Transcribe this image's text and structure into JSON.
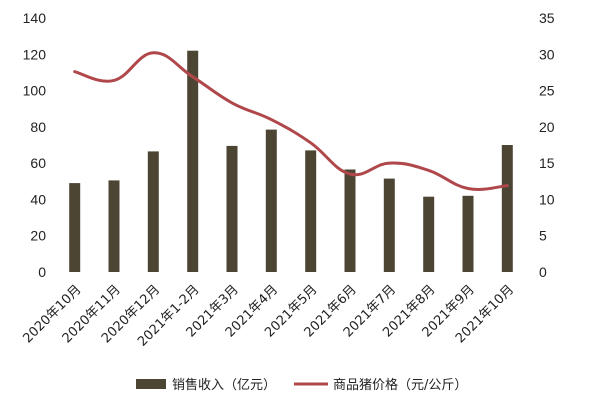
{
  "chart_data": {
    "type": "bar+line",
    "categories": [
      "2020年10月",
      "2020年11月",
      "2020年12月",
      "2021年1-2月",
      "2021年3月",
      "2021年4月",
      "2021年5月",
      "2021年6月",
      "2021年7月",
      "2021年8月",
      "2021年9月",
      "2021年10月"
    ],
    "series": [
      {
        "name": "销售收入（亿元）",
        "type": "bar",
        "axis": "left",
        "color": "#4d4533",
        "values": [
          49,
          50.5,
          66.5,
          122,
          69.5,
          78.5,
          67,
          56.5,
          51.5,
          41.5,
          42,
          70
        ]
      },
      {
        "name": "商品猪价格（元/公斤）",
        "type": "line",
        "axis": "right",
        "color": "#b0484b",
        "values": [
          27.6,
          26.4,
          30.2,
          26.9,
          23.3,
          21,
          17.8,
          13.5,
          15,
          14,
          11.5,
          11.9
        ]
      }
    ],
    "y_left": {
      "ylim": [
        0,
        140
      ],
      "ticks": [
        0,
        20,
        40,
        60,
        80,
        100,
        120,
        140
      ]
    },
    "y_right": {
      "ylim": [
        0,
        35
      ],
      "ticks": [
        0,
        5,
        10,
        15,
        20,
        25,
        30,
        35
      ]
    },
    "grid": false,
    "legend": "bottom",
    "title": "",
    "xlabel": "",
    "ylabel": ""
  }
}
